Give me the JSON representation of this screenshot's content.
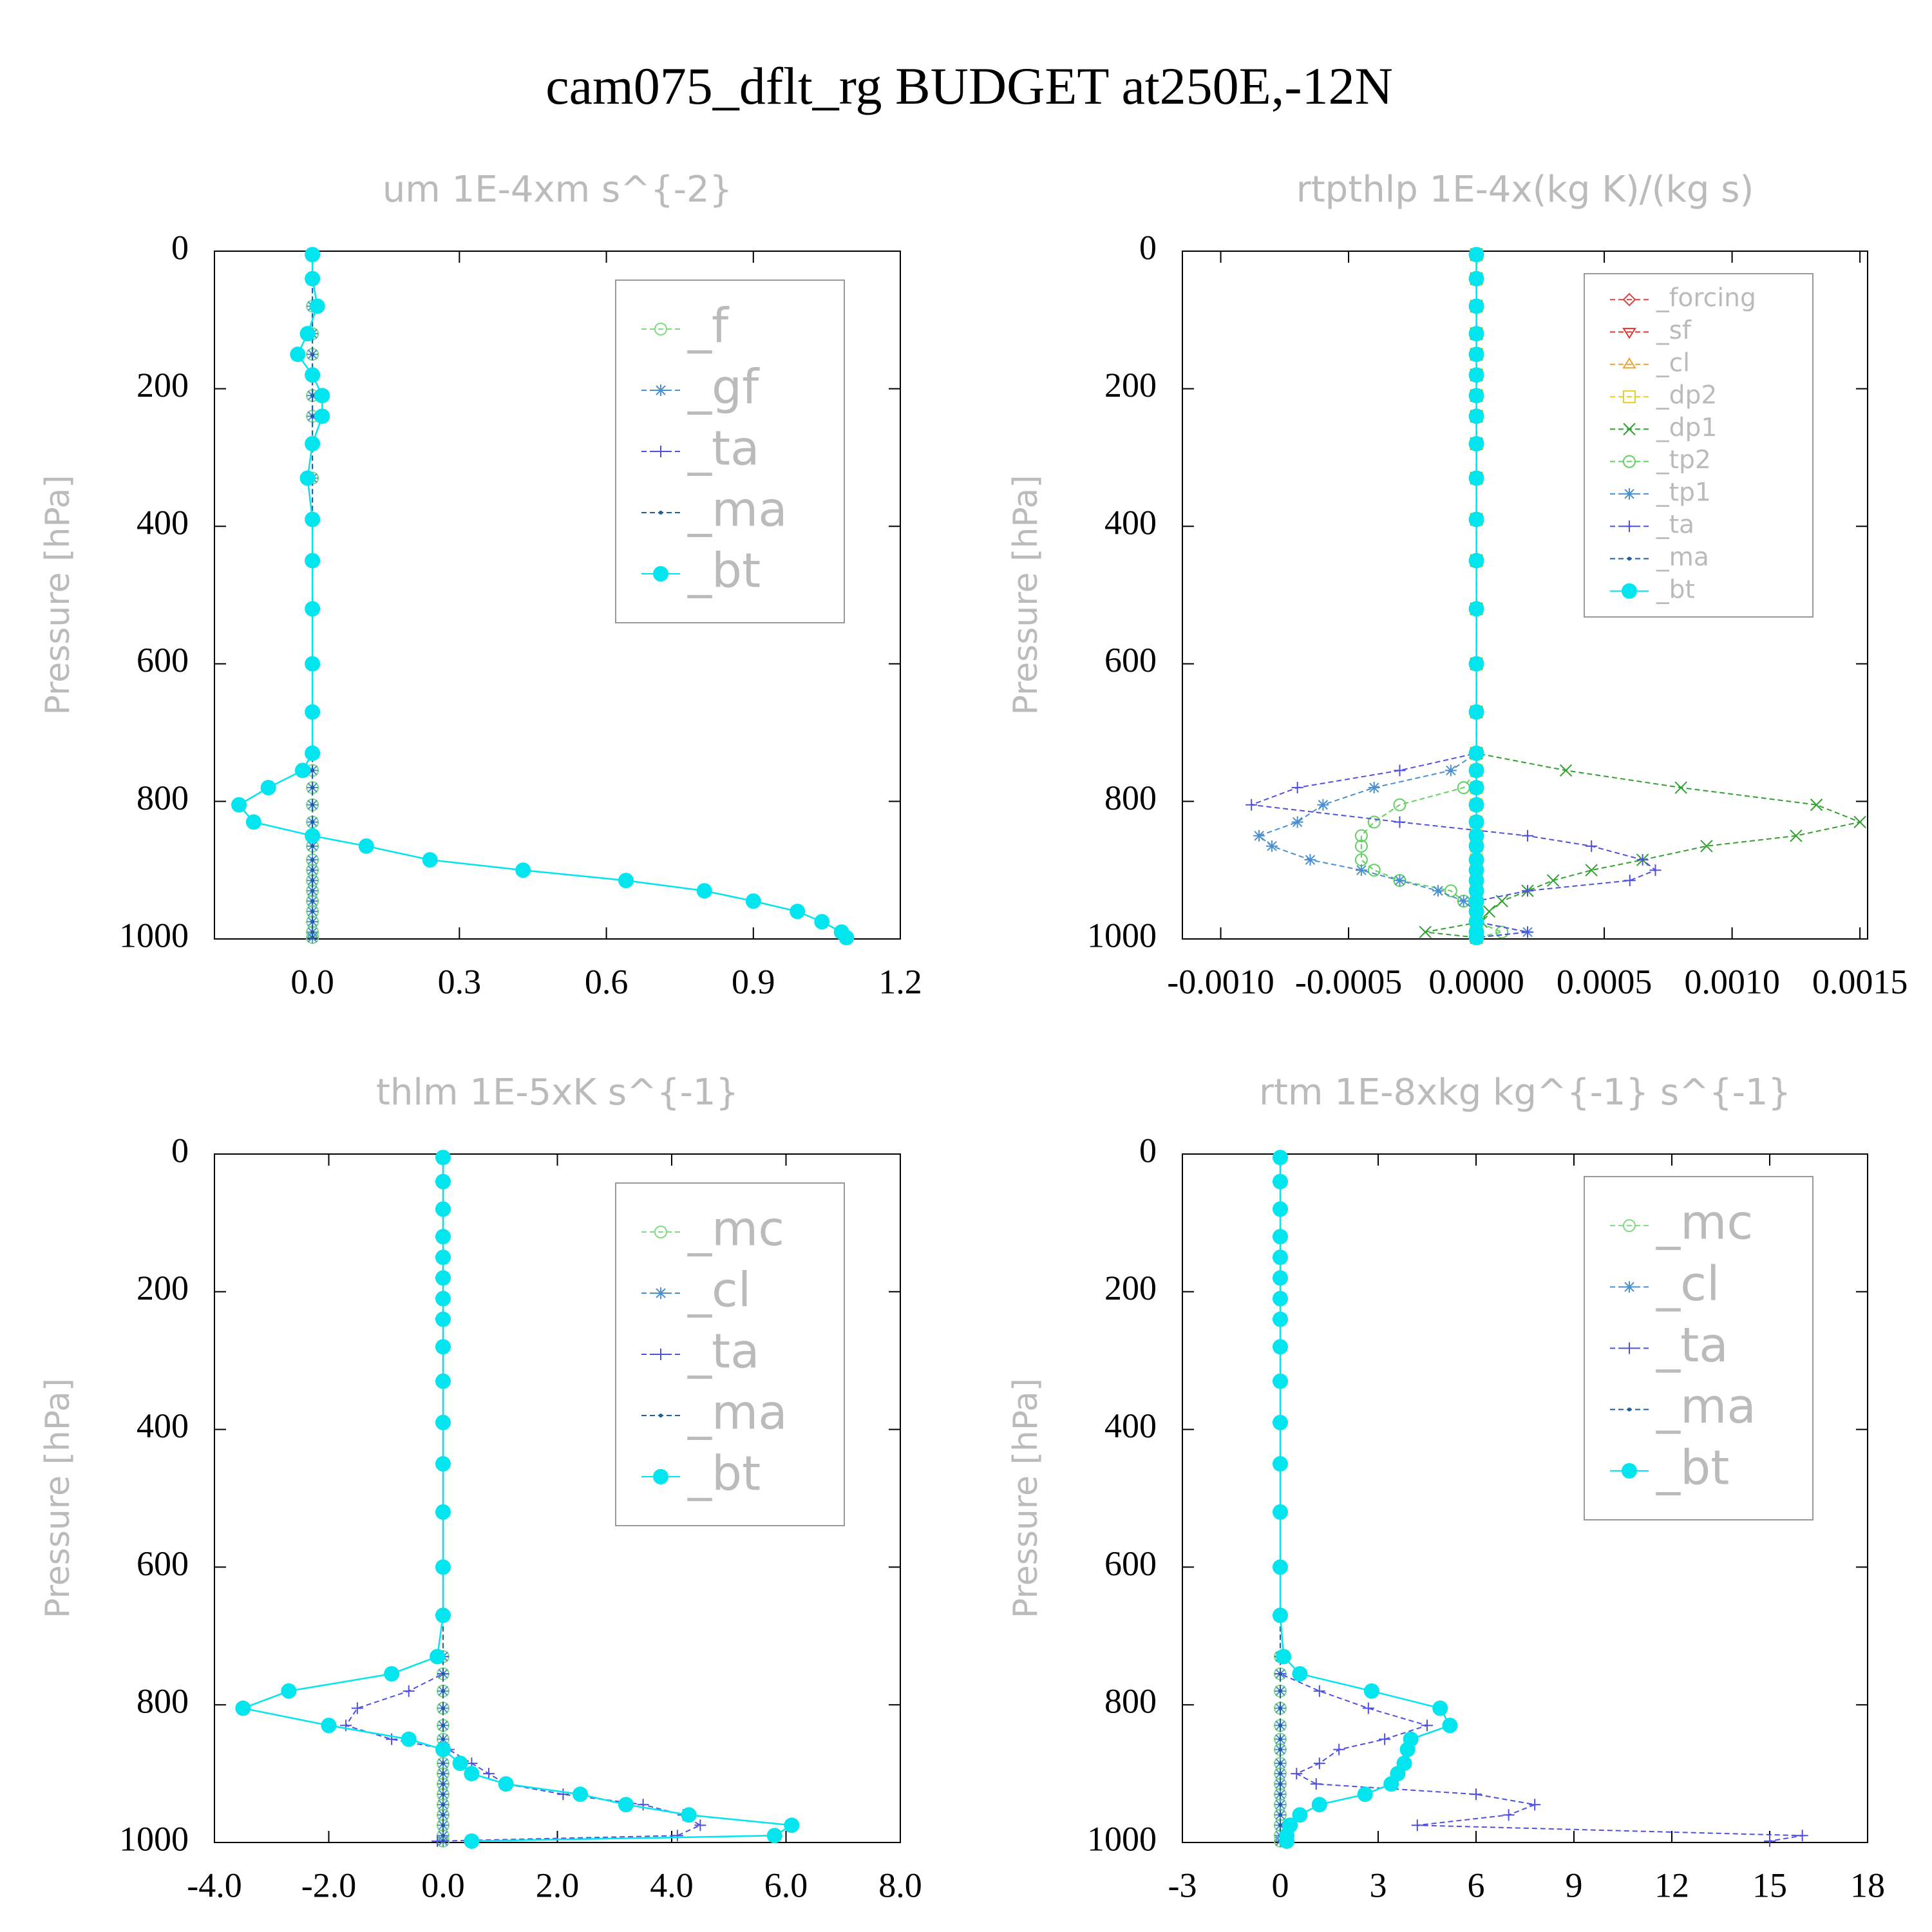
{
  "title": "cam075_dflt_rg  BUDGET at250E,-12N",
  "chart_data": [
    {
      "type": "profile",
      "title": "um  1E-4xm s^{-2}",
      "ylabel": "Pressure [hPa]",
      "y": [
        5,
        40,
        80,
        120,
        150,
        180,
        210,
        240,
        280,
        330,
        390,
        450,
        520,
        600,
        670,
        730,
        755,
        780,
        805,
        830,
        850,
        865,
        885,
        900,
        915,
        930,
        945,
        960,
        975,
        990,
        998
      ],
      "xlim": [
        -0.2,
        1.2
      ],
      "ylim": [
        1000,
        0
      ],
      "xticks": [
        {
          "value": 0,
          "label": "0.0"
        },
        0.3,
        0.6,
        0.9,
        1.2
      ],
      "yticks": [
        0,
        200,
        400,
        600,
        800,
        1000
      ],
      "series": [
        {
          "name": "_f",
          "color": "#7fdc7f",
          "marker": "circle",
          "values": [
            0,
            0,
            0,
            0,
            0,
            0,
            0,
            0,
            0,
            0,
            0,
            0,
            0,
            0,
            0,
            0,
            0,
            0,
            0,
            0,
            0,
            0,
            0,
            0,
            0,
            0,
            0,
            0,
            0,
            0,
            0
          ]
        },
        {
          "name": "_gf",
          "color": "#4a8fcf",
          "marker": "star",
          "values": [
            0,
            0,
            0,
            0,
            0,
            0,
            0,
            0,
            0,
            0,
            0,
            0,
            0,
            0,
            0,
            0,
            0,
            0,
            0,
            0,
            0,
            0,
            0,
            0,
            0,
            0,
            0,
            0,
            0,
            0,
            0
          ]
        },
        {
          "name": "_ta",
          "color": "#5050e0",
          "marker": "plus",
          "values": [
            0,
            0,
            0.01,
            -0.01,
            -0.03,
            0,
            0.02,
            0.02,
            0,
            -0.01,
            0,
            0,
            0,
            0,
            0,
            0,
            -0.02,
            -0.09,
            -0.15,
            -0.12,
            0,
            0.11,
            0.24,
            0.43,
            0.64,
            0.8,
            0.9,
            0.99,
            1.04,
            1.08,
            1.09
          ]
        },
        {
          "name": "_ma",
          "color": "#1f5fa0",
          "marker": "dot",
          "values": [
            0,
            0,
            0,
            0,
            0,
            0,
            0,
            0,
            0,
            0,
            0,
            0,
            0,
            0,
            0,
            0,
            0,
            0,
            0,
            0,
            0,
            0,
            0,
            0,
            0,
            0,
            0,
            0,
            0,
            0,
            0
          ]
        },
        {
          "name": "_bt",
          "color": "#00e5ee",
          "marker": "filled",
          "values": [
            0,
            0,
            0.01,
            -0.01,
            -0.03,
            0,
            0.02,
            0.02,
            0,
            -0.01,
            0,
            0,
            0,
            0,
            0,
            0,
            -0.02,
            -0.09,
            -0.15,
            -0.12,
            0,
            0.11,
            0.24,
            0.43,
            0.64,
            0.8,
            0.9,
            0.99,
            1.04,
            1.08,
            1.09
          ]
        }
      ]
    },
    {
      "type": "profile",
      "title": "rtpthlp  1E-4x(kg K)/(kg s)",
      "ylabel": "Pressure [hPa]",
      "y": [
        5,
        40,
        80,
        120,
        150,
        180,
        210,
        240,
        280,
        330,
        390,
        450,
        520,
        600,
        670,
        730,
        755,
        780,
        805,
        830,
        850,
        865,
        885,
        900,
        915,
        930,
        945,
        960,
        975,
        990,
        998
      ],
      "xlim": [
        -0.00115,
        0.00153
      ],
      "ylim": [
        1000,
        0
      ],
      "xticks": [
        {
          "value": -0.001,
          "label": "-0.0010"
        },
        {
          "value": -0.0005,
          "label": "-0.0005"
        },
        {
          "value": 0,
          "label": "0.0000"
        },
        {
          "value": 0.0005,
          "label": "0.0005"
        },
        {
          "value": 0.001,
          "label": "0.0010"
        },
        {
          "value": 0.0015,
          "label": "0.0015"
        }
      ],
      "yticks": [
        0,
        200,
        400,
        600,
        800,
        1000
      ],
      "series": [
        {
          "name": "_forcing",
          "color": "#e04040",
          "marker": "diamond",
          "values": [
            0,
            0,
            0,
            0,
            0,
            0,
            0,
            0,
            0,
            0,
            0,
            0,
            0,
            0,
            0,
            0,
            0,
            0,
            0,
            0,
            0,
            0,
            0,
            0,
            0,
            0,
            0,
            0,
            0,
            0,
            0
          ]
        },
        {
          "name": "_sf",
          "color": "#e03030",
          "marker": "tridown",
          "values": [
            0,
            0,
            0,
            0,
            0,
            0,
            0,
            0,
            0,
            0,
            0,
            0,
            0,
            0,
            0,
            0,
            0,
            0,
            0,
            0,
            0,
            0,
            0,
            0,
            0,
            0,
            0,
            0,
            0,
            0,
            0
          ]
        },
        {
          "name": "_cl",
          "color": "#f0a030",
          "marker": "triup",
          "values": [
            0,
            0,
            0,
            0,
            0,
            0,
            0,
            0,
            0,
            0,
            0,
            0,
            0,
            0,
            0,
            0,
            0,
            0,
            0,
            0,
            0,
            0,
            0,
            0,
            0,
            0,
            0,
            0,
            0,
            0,
            0
          ]
        },
        {
          "name": "_dp2",
          "color": "#e8d020",
          "marker": "square",
          "values": [
            0,
            0,
            0,
            0,
            0,
            0,
            0,
            0,
            0,
            0,
            0,
            0,
            0,
            0,
            0,
            0,
            0,
            0,
            0,
            0,
            0,
            0,
            0,
            0,
            0,
            0,
            0,
            0,
            0,
            0,
            0
          ]
        },
        {
          "name": "_dp1",
          "color": "#30a030",
          "marker": "cross",
          "values": [
            0,
            0,
            0,
            0,
            0,
            0,
            0,
            0,
            0,
            0,
            0,
            0,
            0,
            0,
            0,
            0,
            0.00035,
            0.0008,
            0.00133,
            0.0015,
            0.00125,
            0.0009,
            0.00065,
            0.00045,
            0.0003,
            0.0002,
            0.0001,
            5e-05,
            2e-05,
            -0.0002,
            0
          ]
        },
        {
          "name": "_tp2",
          "color": "#60d060",
          "marker": "circle",
          "values": [
            0,
            0,
            0,
            0,
            0,
            0,
            0,
            0,
            0,
            0,
            0,
            0,
            0,
            0,
            0,
            0,
            0,
            -5e-05,
            -0.0003,
            -0.0004,
            -0.00045,
            -0.00045,
            -0.00045,
            -0.0004,
            -0.0003,
            -0.0001,
            -5e-05,
            0,
            0,
            0.0001,
            0
          ]
        },
        {
          "name": "_tp1",
          "color": "#4a8fcf",
          "marker": "star",
          "values": [
            0,
            0,
            0,
            0,
            0,
            0,
            0,
            0,
            0,
            0,
            0,
            0,
            0,
            0,
            0,
            0,
            -0.0001,
            -0.0004,
            -0.0006,
            -0.0007,
            -0.00085,
            -0.0008,
            -0.00065,
            -0.00045,
            -0.0003,
            -0.00015,
            -5e-05,
            0,
            0,
            0.0002,
            0
          ]
        },
        {
          "name": "_ta",
          "color": "#5050e0",
          "marker": "plus",
          "values": [
            0,
            0,
            0,
            0,
            0,
            0,
            0,
            0,
            0,
            0,
            0,
            0,
            0,
            0,
            0,
            0,
            -0.0003,
            -0.0007,
            -0.00088,
            -0.0003,
            0.0002,
            0.00045,
            0.00065,
            0.0007,
            0.0006,
            0.0002,
            0,
            0,
            0,
            0.0002,
            0
          ]
        },
        {
          "name": "_ma",
          "color": "#1f5fa0",
          "marker": "dot",
          "values": [
            0,
            0,
            0,
            0,
            0,
            0,
            0,
            0,
            0,
            0,
            0,
            0,
            0,
            0,
            0,
            0,
            0,
            0,
            0,
            0,
            0,
            0,
            0,
            0,
            0,
            0,
            0,
            0,
            0,
            0,
            0
          ]
        },
        {
          "name": "_bt",
          "color": "#00e5ee",
          "marker": "filled",
          "values": [
            0,
            0,
            0,
            0,
            0,
            0,
            0,
            0,
            0,
            0,
            0,
            0,
            0,
            0,
            0,
            0,
            0,
            0,
            0,
            0,
            0,
            0,
            0,
            0,
            0,
            0,
            0,
            0,
            0,
            0,
            0
          ]
        }
      ]
    },
    {
      "type": "profile",
      "title": "thlm  1E-5xK s^{-1}",
      "ylabel": "Pressure [hPa]",
      "y": [
        5,
        40,
        80,
        120,
        150,
        180,
        210,
        240,
        280,
        330,
        390,
        450,
        520,
        600,
        670,
        730,
        755,
        780,
        805,
        830,
        850,
        865,
        885,
        900,
        915,
        930,
        945,
        960,
        975,
        990,
        998
      ],
      "xlim": [
        -4,
        8
      ],
      "ylim": [
        1000,
        0
      ],
      "xticks": [
        {
          "value": -4,
          "label": "-4.0"
        },
        {
          "value": -2,
          "label": "-2.0"
        },
        {
          "value": 0,
          "label": "0.0"
        },
        {
          "value": 2,
          "label": "2.0"
        },
        {
          "value": 4,
          "label": "4.0"
        },
        {
          "value": 6,
          "label": "6.0"
        },
        {
          "value": 8,
          "label": "8.0"
        }
      ],
      "yticks": [
        0,
        200,
        400,
        600,
        800,
        1000
      ],
      "series": [
        {
          "name": "_mc",
          "color": "#7fdc7f",
          "marker": "circle",
          "values": [
            0,
            0,
            0,
            0,
            0,
            0,
            0,
            0,
            0,
            0,
            0,
            0,
            0,
            0,
            0,
            0,
            0,
            0,
            0,
            0,
            0,
            0,
            0,
            0,
            0,
            0,
            0,
            0,
            0,
            0,
            0
          ]
        },
        {
          "name": "_cl",
          "color": "#4a8fcf",
          "marker": "star",
          "values": [
            0,
            0,
            0,
            0,
            0,
            0,
            0,
            0,
            0,
            0,
            0,
            0,
            0,
            0,
            0,
            0,
            0,
            0,
            0,
            0,
            0,
            0,
            0,
            0,
            0,
            0,
            0,
            0,
            0,
            0,
            0
          ]
        },
        {
          "name": "_ta",
          "color": "#5050e0",
          "marker": "plus",
          "values": [
            0,
            0,
            0,
            0,
            0,
            0,
            0,
            0,
            0,
            0,
            0,
            0,
            0,
            0,
            0,
            0,
            0,
            -0.6,
            -1.5,
            -1.7,
            -0.9,
            0.1,
            0.5,
            0.8,
            1.1,
            2.1,
            3.5,
            4.2,
            4.5,
            4.1,
            -0.1
          ]
        },
        {
          "name": "_ma",
          "color": "#1f5fa0",
          "marker": "dot",
          "values": [
            0,
            0,
            0,
            0,
            0,
            0,
            0,
            0,
            0,
            0,
            0,
            0,
            0,
            0,
            0,
            0,
            0,
            0,
            0,
            0,
            0,
            0,
            0,
            0,
            0,
            0,
            0,
            0,
            0,
            0,
            0
          ]
        },
        {
          "name": "_bt",
          "color": "#00e5ee",
          "marker": "filled",
          "values": [
            0,
            0,
            0,
            0,
            0,
            0,
            0,
            0,
            0,
            0,
            0,
            0,
            0,
            0,
            0,
            -0.1,
            -0.9,
            -2.7,
            -3.5,
            -2.0,
            -0.6,
            0,
            0.3,
            0.5,
            1.1,
            2.4,
            3.2,
            4.3,
            6.1,
            5.8,
            0.5
          ]
        }
      ]
    },
    {
      "type": "profile",
      "title": "rtm  1E-8xkg kg^{-1} s^{-1}",
      "ylabel": "Pressure [hPa]",
      "y": [
        5,
        40,
        80,
        120,
        150,
        180,
        210,
        240,
        280,
        330,
        390,
        450,
        520,
        600,
        670,
        730,
        755,
        780,
        805,
        830,
        850,
        865,
        885,
        900,
        915,
        930,
        945,
        960,
        975,
        990,
        998
      ],
      "xlim": [
        -3,
        18
      ],
      "ylim": [
        1000,
        0
      ],
      "xticks": [
        -3,
        0,
        3,
        6,
        9,
        12,
        15,
        18
      ],
      "yticks": [
        0,
        200,
        400,
        600,
        800,
        1000
      ],
      "series": [
        {
          "name": "_mc",
          "color": "#7fdc7f",
          "marker": "circle",
          "values": [
            0,
            0,
            0,
            0,
            0,
            0,
            0,
            0,
            0,
            0,
            0,
            0,
            0,
            0,
            0,
            0,
            0,
            0,
            0,
            0,
            0,
            0,
            0,
            0,
            0,
            0,
            0,
            0,
            0,
            0,
            0
          ]
        },
        {
          "name": "_cl",
          "color": "#4a8fcf",
          "marker": "star",
          "values": [
            0,
            0,
            0,
            0,
            0,
            0,
            0,
            0,
            0,
            0,
            0,
            0,
            0,
            0,
            0,
            0,
            0,
            0,
            0,
            0,
            0,
            0,
            0,
            0,
            0,
            0,
            0,
            0,
            0,
            0,
            0
          ]
        },
        {
          "name": "_ta",
          "color": "#5050e0",
          "marker": "plus",
          "values": [
            0,
            0,
            0,
            0,
            0,
            0,
            0,
            0,
            0,
            0,
            0,
            0,
            0,
            0,
            0,
            0,
            0,
            1.2,
            2.7,
            4.5,
            3.2,
            1.8,
            1.2,
            0.5,
            1.1,
            6,
            7.8,
            7,
            4.2,
            16,
            15
          ]
        },
        {
          "name": "_ma",
          "color": "#1f5fa0",
          "marker": "dot",
          "values": [
            0,
            0,
            0,
            0,
            0,
            0,
            0,
            0,
            0,
            0,
            0,
            0,
            0,
            0,
            0,
            0,
            0,
            0,
            0,
            0,
            0,
            0,
            0,
            0,
            0,
            0,
            0,
            0,
            0,
            0,
            0
          ]
        },
        {
          "name": "_bt",
          "color": "#00e5ee",
          "marker": "filled",
          "values": [
            0,
            0,
            0,
            0,
            0,
            0,
            0,
            0,
            0,
            0,
            0,
            0,
            0,
            0,
            0,
            0.1,
            0.6,
            2.8,
            4.9,
            5.2,
            4,
            3.9,
            3.8,
            3.6,
            3.4,
            2.6,
            1.2,
            0.6,
            0.3,
            0.2,
            0.2
          ]
        }
      ]
    }
  ]
}
